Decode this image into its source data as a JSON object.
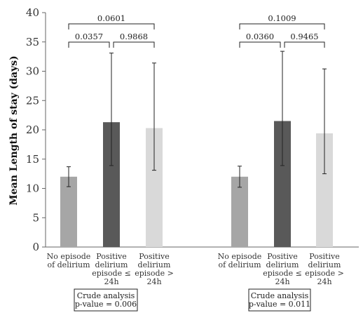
{
  "chart_data": {
    "type": "bar",
    "ylabel": "Mean Length of stay (days)",
    "ylim": [
      0,
      40
    ],
    "yticks": [
      0,
      5,
      10,
      15,
      20,
      25,
      30,
      35,
      40
    ],
    "grid": false,
    "categories": [
      [
        "No episode",
        "of delirium"
      ],
      [
        "Positive",
        "delirium",
        "episode ≤",
        "24h"
      ],
      [
        "Positive",
        "delirium",
        "episode >",
        "24h"
      ]
    ],
    "bar_colors": [
      "#a6a6a6",
      "#595959",
      "#d9d9d9"
    ],
    "groups": [
      {
        "values": [
          12.0,
          21.3,
          20.3
        ],
        "error_low": [
          10.3,
          13.9,
          13.1
        ],
        "error_high": [
          13.7,
          33.1,
          31.4
        ],
        "comparisons": [
          {
            "from": 0,
            "to": 1,
            "p": "0.0357"
          },
          {
            "from": 1,
            "to": 2,
            "p": "0.9868"
          },
          {
            "from": 0,
            "to": 2,
            "p": "0.0601"
          }
        ],
        "crude_analysis": [
          "Crude analysis",
          "p-value = 0.006"
        ]
      },
      {
        "values": [
          12.0,
          21.5,
          19.4
        ],
        "error_low": [
          10.2,
          13.9,
          12.5
        ],
        "error_high": [
          13.8,
          33.4,
          30.4
        ],
        "comparisons": [
          {
            "from": 0,
            "to": 1,
            "p": "0.0360"
          },
          {
            "from": 1,
            "to": 2,
            "p": "0.9465"
          },
          {
            "from": 0,
            "to": 2,
            "p": "0.1009"
          }
        ],
        "crude_analysis": [
          "Crude analysis",
          "p-value = 0.011"
        ]
      }
    ]
  }
}
